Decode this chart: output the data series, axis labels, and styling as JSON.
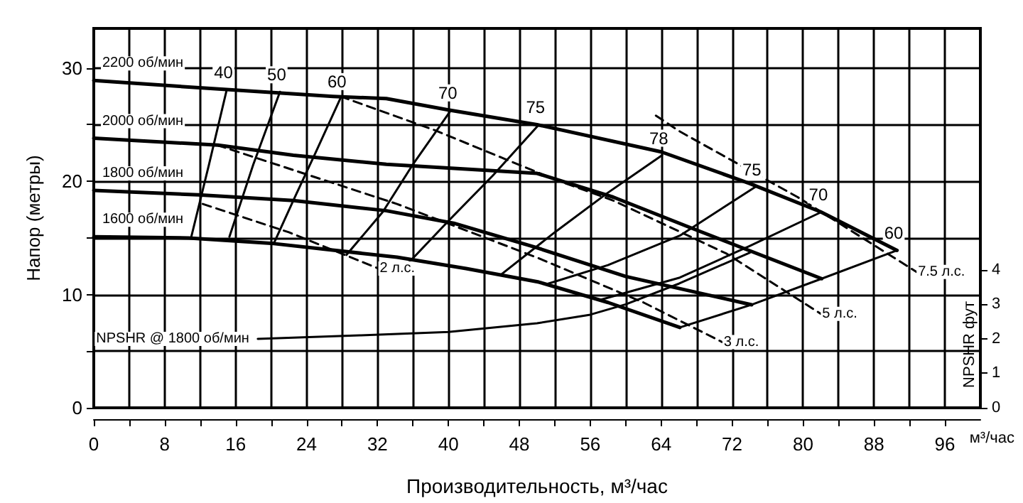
{
  "chart_data": {
    "type": "line",
    "xlabel": "Производительность, м³/час",
    "ylabel": "Напор (метры)",
    "y2label": "NPSHR фут",
    "xlim": [
      0,
      100
    ],
    "xticks": [
      0,
      {
        "value": 4,
        "label": null
      },
      8,
      {
        "value": 12,
        "label": null
      },
      16,
      {
        "value": 20,
        "label": null
      },
      24,
      {
        "value": 28,
        "label": null
      },
      32,
      {
        "value": 36,
        "label": null
      },
      40,
      {
        "value": 44,
        "label": null
      },
      48,
      {
        "value": 52,
        "label": null
      },
      56,
      {
        "value": 60,
        "label": null
      },
      64,
      {
        "value": 68,
        "label": null
      },
      72,
      {
        "value": 76,
        "label": null
      },
      80,
      {
        "value": 84,
        "label": null
      },
      88,
      {
        "value": 92,
        "label": null
      },
      96
    ],
    "ylim": [
      0,
      33.5
    ],
    "yticks": [
      0,
      {
        "value": 5,
        "label": null
      },
      10,
      {
        "value": 15,
        "label": null
      },
      20,
      {
        "value": 25,
        "label": null
      },
      30
    ],
    "y2lim": [
      0,
      11
    ],
    "y2ticks": [
      0,
      1,
      2,
      3,
      4
    ],
    "grid": true,
    "marker": "none",
    "annotations": [
      "м³/час"
    ],
    "series": [
      {
        "name": "2200 об/мин",
        "color": "#000000",
        "x": [
          0,
          15,
          27,
          33,
          40,
          50,
          64,
          74,
          82,
          90.6
        ],
        "values": [
          28.9,
          28.1,
          27.5,
          27.3,
          26.3,
          25.0,
          22.6,
          19.8,
          17.3,
          13.9
        ]
      },
      {
        "name": "2000 об/мин",
        "color": "#000000",
        "x": [
          0,
          14,
          22.5,
          33,
          50,
          58.6,
          67,
          82.1
        ],
        "values": [
          23.8,
          23.2,
          22.3,
          21.5,
          20.7,
          18.6,
          16.0,
          11.4
        ]
      },
      {
        "name": "1800 об/мин",
        "color": "#000000",
        "x": [
          0,
          11.8,
          22.5,
          33,
          40.6,
          49.7,
          60,
          74.2
        ],
        "values": [
          19.2,
          18.8,
          18.3,
          17.4,
          16.3,
          14.2,
          11.6,
          9.1
        ]
      },
      {
        "name": "1600 об/мин",
        "color": "#000000",
        "x": [
          0,
          10.7,
          20.3,
          34.2,
          42,
          50.2,
          58,
          66.1
        ],
        "values": [
          15.1,
          15.0,
          14.5,
          13.3,
          12.3,
          11.1,
          9.3,
          7.1
        ]
      },
      {
        "name": "40",
        "color": "#000000",
        "x": [
          11,
          13,
          15
        ],
        "values": [
          15.1,
          21.5,
          28.1
        ]
      },
      {
        "name": "50",
        "color": "#000000",
        "x": [
          15.3,
          18,
          21
        ],
        "values": [
          15.1,
          21.5,
          27.9
        ]
      },
      {
        "name": "60",
        "color": "#000000",
        "x": [
          20.3,
          22.5,
          25,
          27.8
        ],
        "values": [
          14.5,
          18.3,
          22.5,
          27.3
        ]
      },
      {
        "name": "70",
        "color": "#000000",
        "x": [
          28.5,
          32.6,
          36,
          40.3
        ],
        "values": [
          13.5,
          17.3,
          21.5,
          26.3
        ]
      },
      {
        "name": "75",
        "color": "#000000",
        "x": [
          35.5,
          40,
          45,
          50.2
        ],
        "values": [
          12.8,
          16.5,
          20.5,
          25.0
        ]
      },
      {
        "name": "78",
        "color": "#000000",
        "x": [
          46,
          52,
          58,
          64.1
        ],
        "values": [
          11.8,
          15.5,
          19,
          22.3
        ]
      },
      {
        "name": "75",
        "color": "#000000",
        "x": [
          51,
          58,
          66.1,
          74.6
        ],
        "values": [
          10.9,
          12.6,
          15.2,
          19.5
        ]
      },
      {
        "name": "70",
        "color": "#000000",
        "x": [
          57,
          66.1,
          74,
          82.1
        ],
        "values": [
          9.5,
          11.5,
          14.3,
          17.3
        ]
      },
      {
        "name": "60",
        "color": "#000000",
        "x": [
          66.1,
          74.2,
          82.1,
          90.6
        ],
        "values": [
          7.1,
          9.1,
          11.4,
          13.9
        ]
      },
      {
        "name": "2 л.с.",
        "color": "#000000",
        "line_style": "dashed",
        "x": [
          12.3,
          22,
          32.1
        ],
        "values": [
          18.0,
          15.5,
          12.3
        ]
      },
      {
        "name": "3 л.с.",
        "color": "#000000",
        "line_style": "dashed",
        "x": [
          13.9,
          34.2,
          50.2,
          62,
          70.9
        ],
        "values": [
          23.2,
          18.0,
          13.2,
          9.3,
          5.8
        ]
      },
      {
        "name": "5 л.с.",
        "color": "#000000",
        "line_style": "dashed",
        "x": [
          27.8,
          38.5,
          52.2,
          58.6,
          71.4,
          82
        ],
        "values": [
          27.5,
          24.5,
          20.1,
          18.3,
          13.6,
          8.3
        ]
      },
      {
        "name": "7.5 л.с.",
        "color": "#000000",
        "line_style": "dashed",
        "x": [
          63.4,
          66.1,
          79.4,
          92.8
        ],
        "values": [
          25.8,
          24.4,
          18.6,
          12.0
        ]
      },
      {
        "name": "NPSHR @ 1800 об/мин",
        "color": "#000000",
        "axis": "y2",
        "x": [
          18.5,
          30,
          40,
          50,
          56,
          60,
          66,
          74
        ],
        "values": [
          2.0,
          2.1,
          2.2,
          2.45,
          2.7,
          3.0,
          3.6,
          4.5
        ]
      }
    ]
  }
}
